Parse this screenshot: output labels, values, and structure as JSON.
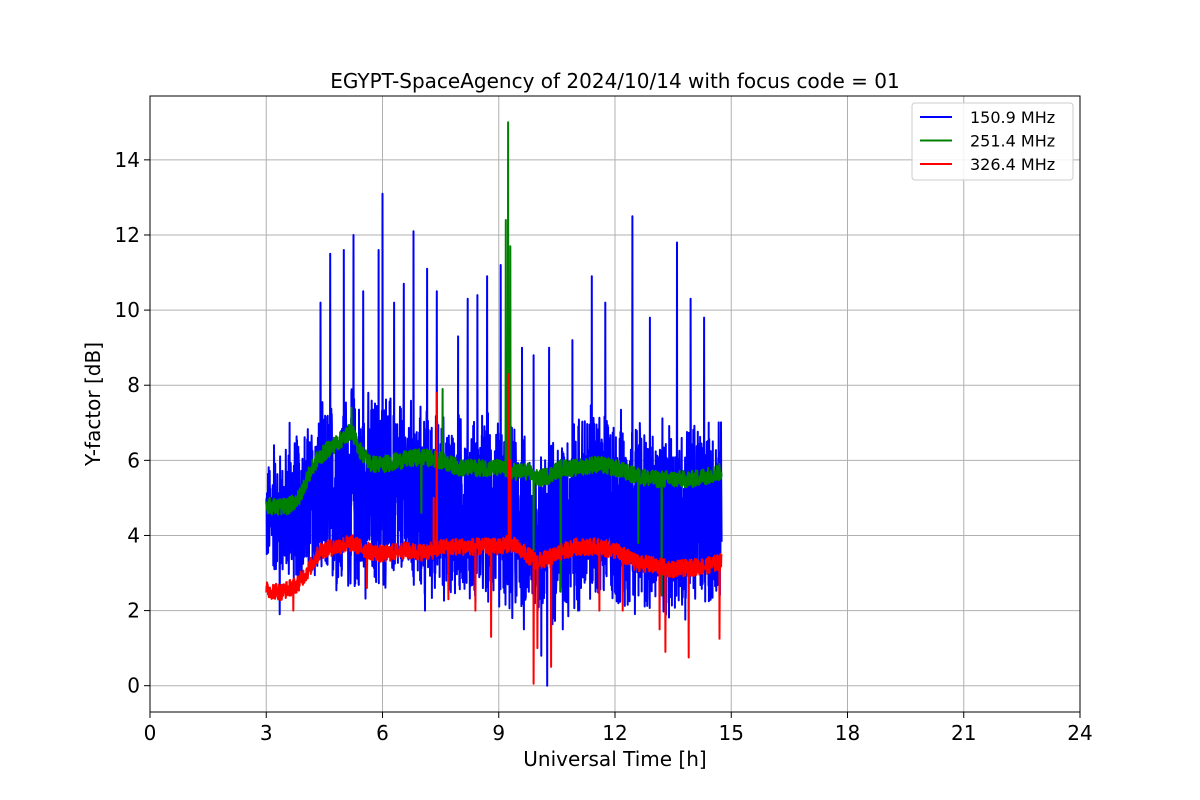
{
  "chart_data": {
    "type": "line",
    "title": "EGYPT-SpaceAgency of 2024/10/14 with focus code = 01",
    "xlabel": "Universal Time [h]",
    "ylabel": "Y-factor [dB]",
    "xlim": [
      0,
      24
    ],
    "ylim": [
      -0.7,
      15.7
    ],
    "xticks": [
      0,
      3,
      6,
      9,
      12,
      15,
      18,
      21,
      24
    ],
    "yticks": [
      0,
      2,
      4,
      6,
      8,
      10,
      12,
      14
    ],
    "grid": true,
    "legend_position": "top-right",
    "series": [
      {
        "name": "150.9 MHz",
        "color": "#0000ff",
        "band_center": [
          [
            3.0,
            4.5
          ],
          [
            3.5,
            4.6
          ],
          [
            4.0,
            4.8
          ],
          [
            4.5,
            5.0
          ],
          [
            5.0,
            5.2
          ],
          [
            5.5,
            5.0
          ],
          [
            6.0,
            5.2
          ],
          [
            6.5,
            5.1
          ],
          [
            7.0,
            4.9
          ],
          [
            7.5,
            4.8
          ],
          [
            8.0,
            4.7
          ],
          [
            8.5,
            4.7
          ],
          [
            9.0,
            4.6
          ],
          [
            9.5,
            4.4
          ],
          [
            10.0,
            4.0
          ],
          [
            10.5,
            4.2
          ],
          [
            11.0,
            4.5
          ],
          [
            11.5,
            4.8
          ],
          [
            12.0,
            4.6
          ],
          [
            12.5,
            4.6
          ],
          [
            13.0,
            4.4
          ],
          [
            13.5,
            4.3
          ],
          [
            14.0,
            4.5
          ],
          [
            14.7,
            4.6
          ]
        ],
        "band_width": [
          [
            3.0,
            1.6
          ],
          [
            4.0,
            2.4
          ],
          [
            5.0,
            3.0
          ],
          [
            6.0,
            3.0
          ],
          [
            7.0,
            2.8
          ],
          [
            8.0,
            2.8
          ],
          [
            9.0,
            2.8
          ],
          [
            10.0,
            2.6
          ],
          [
            11.0,
            3.0
          ],
          [
            12.0,
            3.0
          ],
          [
            13.0,
            2.8
          ],
          [
            14.0,
            3.0
          ],
          [
            14.7,
            2.6
          ]
        ],
        "spikes": [
          [
            3.2,
            6.4
          ],
          [
            3.6,
            7.0
          ],
          [
            4.4,
            10.2
          ],
          [
            4.65,
            11.5
          ],
          [
            5.0,
            11.6
          ],
          [
            5.25,
            12.0
          ],
          [
            5.5,
            10.5
          ],
          [
            5.9,
            11.6
          ],
          [
            6.0,
            13.1
          ],
          [
            6.3,
            10.2
          ],
          [
            6.55,
            10.7
          ],
          [
            6.8,
            12.1
          ],
          [
            7.15,
            11.1
          ],
          [
            7.4,
            10.5
          ],
          [
            7.95,
            9.3
          ],
          [
            8.2,
            10.3
          ],
          [
            8.45,
            10.4
          ],
          [
            8.7,
            10.9
          ],
          [
            9.05,
            11.2
          ],
          [
            9.6,
            9.0
          ],
          [
            9.9,
            8.8
          ],
          [
            10.3,
            9.0
          ],
          [
            10.9,
            9.2
          ],
          [
            11.4,
            10.9
          ],
          [
            11.75,
            10.2
          ],
          [
            12.45,
            12.5
          ],
          [
            12.9,
            9.8
          ],
          [
            13.6,
            11.8
          ],
          [
            13.95,
            10.3
          ],
          [
            14.3,
            9.8
          ]
        ],
        "dips": [
          [
            3.35,
            1.9
          ],
          [
            7.1,
            2.0
          ],
          [
            9.35,
            1.8
          ],
          [
            9.65,
            1.5
          ],
          [
            10.1,
            0.8
          ],
          [
            10.25,
            0.0
          ],
          [
            10.65,
            1.5
          ],
          [
            11.05,
            2.0
          ],
          [
            11.5,
            2.5
          ]
        ],
        "time_range": [
          3.0,
          14.75
        ]
      },
      {
        "name": "251.4 MHz",
        "color": "#008000",
        "trend": [
          [
            3.0,
            4.8
          ],
          [
            3.3,
            4.75
          ],
          [
            3.6,
            4.8
          ],
          [
            3.85,
            5.0
          ],
          [
            4.0,
            5.4
          ],
          [
            4.3,
            6.0
          ],
          [
            4.6,
            6.3
          ],
          [
            5.0,
            6.6
          ],
          [
            5.2,
            6.8
          ],
          [
            5.4,
            6.3
          ],
          [
            5.7,
            5.9
          ],
          [
            6.0,
            5.9
          ],
          [
            6.5,
            6.0
          ],
          [
            7.0,
            6.1
          ],
          [
            7.5,
            6.0
          ],
          [
            8.0,
            5.8
          ],
          [
            8.5,
            5.8
          ],
          [
            9.0,
            5.8
          ],
          [
            9.4,
            5.7
          ],
          [
            9.8,
            5.7
          ],
          [
            10.0,
            5.5
          ],
          [
            10.3,
            5.6
          ],
          [
            10.6,
            5.8
          ],
          [
            11.0,
            5.8
          ],
          [
            11.5,
            5.9
          ],
          [
            12.0,
            5.8
          ],
          [
            12.5,
            5.6
          ],
          [
            13.0,
            5.5
          ],
          [
            13.5,
            5.5
          ],
          [
            14.0,
            5.5
          ],
          [
            14.4,
            5.6
          ],
          [
            14.75,
            5.7
          ]
        ],
        "spikes": [
          [
            7.55,
            7.9
          ],
          [
            9.18,
            12.4
          ],
          [
            9.24,
            15.0
          ],
          [
            9.3,
            11.7
          ],
          [
            9.27,
            9.3
          ],
          [
            5.2,
            7.4
          ]
        ],
        "dips": [
          [
            10.6,
            2.5
          ],
          [
            13.2,
            2.4
          ],
          [
            9.9,
            3.6
          ],
          [
            12.6,
            3.8
          ],
          [
            7.0,
            4.6
          ]
        ],
        "time_range": [
          3.0,
          14.75
        ]
      },
      {
        "name": "326.4 MHz",
        "color": "#ff0000",
        "trend": [
          [
            3.0,
            2.55
          ],
          [
            3.4,
            2.5
          ],
          [
            3.8,
            2.7
          ],
          [
            4.1,
            3.1
          ],
          [
            4.4,
            3.6
          ],
          [
            4.8,
            3.7
          ],
          [
            5.2,
            3.8
          ],
          [
            5.6,
            3.6
          ],
          [
            6.0,
            3.5
          ],
          [
            6.5,
            3.6
          ],
          [
            7.0,
            3.55
          ],
          [
            7.3,
            3.6
          ],
          [
            7.6,
            3.7
          ],
          [
            8.0,
            3.7
          ],
          [
            8.5,
            3.7
          ],
          [
            9.0,
            3.7
          ],
          [
            9.3,
            3.8
          ],
          [
            9.7,
            3.5
          ],
          [
            10.0,
            3.3
          ],
          [
            10.3,
            3.4
          ],
          [
            10.7,
            3.6
          ],
          [
            11.0,
            3.7
          ],
          [
            11.5,
            3.7
          ],
          [
            12.0,
            3.6
          ],
          [
            12.5,
            3.3
          ],
          [
            13.0,
            3.2
          ],
          [
            13.5,
            3.1
          ],
          [
            14.0,
            3.15
          ],
          [
            14.4,
            3.2
          ],
          [
            14.75,
            3.3
          ]
        ],
        "spikes": [
          [
            7.32,
            5.0
          ],
          [
            7.4,
            7.8
          ],
          [
            9.26,
            8.3
          ],
          [
            9.3,
            6.0
          ]
        ],
        "dips": [
          [
            3.7,
            2.0
          ],
          [
            5.6,
            2.6
          ],
          [
            7.7,
            2.3
          ],
          [
            8.4,
            2.0
          ],
          [
            8.8,
            1.3
          ],
          [
            9.9,
            0.05
          ],
          [
            10.35,
            0.5
          ],
          [
            10.0,
            1.0
          ],
          [
            11.6,
            2.0
          ],
          [
            12.2,
            2.0
          ],
          [
            13.15,
            1.5
          ],
          [
            13.3,
            0.9
          ],
          [
            13.9,
            0.75
          ],
          [
            14.7,
            1.25
          ]
        ],
        "time_range": [
          3.0,
          14.75
        ]
      }
    ]
  }
}
